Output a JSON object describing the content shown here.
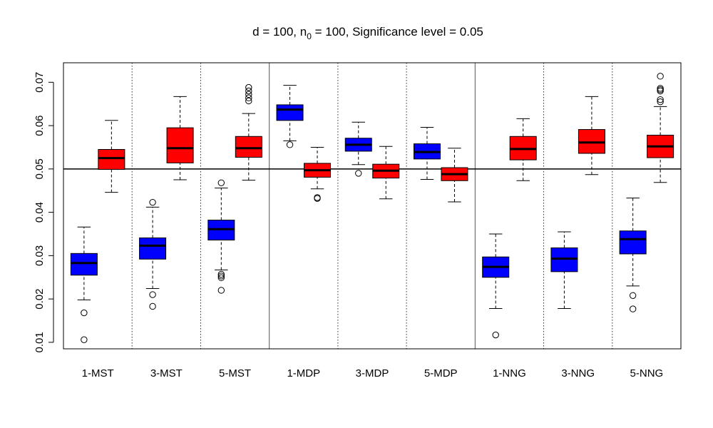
{
  "chart_data": {
    "type": "boxplot",
    "title": "d = 100, n",
    "title_subscript": "0",
    "title_rest": " = 100, Significance level = 0.05",
    "xlabel": "",
    "ylabel": "",
    "ylim": [
      0.0085,
      0.0745
    ],
    "yticks": [
      0.01,
      0.02,
      0.03,
      0.04,
      0.05,
      0.06,
      0.07
    ],
    "ytick_labels": [
      "0.01",
      "0.02",
      "0.03",
      "0.04",
      "0.05",
      "0.06",
      "0.07"
    ],
    "reference_line": 0.05,
    "categories": [
      "1-MST",
      "3-MST",
      "5-MST",
      "1-MDP",
      "3-MDP",
      "5-MDP",
      "1-NNG",
      "3-NNG",
      "5-NNG"
    ],
    "series_colors": {
      "blue": "#0000ff",
      "red": "#ff0000"
    },
    "groups": [
      {
        "label": "1-MST",
        "blue": {
          "whisker_low": 0.0198,
          "q1": 0.0255,
          "median": 0.0283,
          "q3": 0.0305,
          "whisker_high": 0.0366,
          "outliers": [
            0.0168,
            0.0106
          ]
        },
        "red": {
          "whisker_low": 0.0446,
          "q1": 0.0499,
          "median": 0.0525,
          "q3": 0.0545,
          "whisker_high": 0.0612,
          "outliers": []
        }
      },
      {
        "label": "3-MST",
        "blue": {
          "whisker_low": 0.0224,
          "q1": 0.0292,
          "median": 0.0323,
          "q3": 0.0341,
          "whisker_high": 0.0412,
          "outliers": [
            0.0423,
            0.021,
            0.0183
          ]
        },
        "red": {
          "whisker_low": 0.0475,
          "q1": 0.0514,
          "median": 0.0548,
          "q3": 0.0595,
          "whisker_high": 0.0667,
          "outliers": []
        }
      },
      {
        "label": "5-MST",
        "blue": {
          "whisker_low": 0.0267,
          "q1": 0.0336,
          "median": 0.0361,
          "q3": 0.0382,
          "whisker_high": 0.0456,
          "outliers": [
            0.0468,
            0.0257,
            0.0253,
            0.0249,
            0.022
          ]
        },
        "red": {
          "whisker_low": 0.0474,
          "q1": 0.0527,
          "median": 0.0548,
          "q3": 0.0575,
          "whisker_high": 0.0628,
          "outliers": [
            0.0688,
            0.068,
            0.0672,
            0.0664,
            0.0657
          ]
        }
      },
      {
        "label": "1-MDP",
        "blue": {
          "whisker_low": 0.0565,
          "q1": 0.0612,
          "median": 0.0637,
          "q3": 0.0648,
          "whisker_high": 0.0693,
          "outliers": [
            0.0556
          ]
        },
        "red": {
          "whisker_low": 0.0454,
          "q1": 0.0481,
          "median": 0.0497,
          "q3": 0.0513,
          "whisker_high": 0.055,
          "outliers": [
            0.0434,
            0.0432
          ]
        }
      },
      {
        "label": "3-MDP",
        "blue": {
          "whisker_low": 0.051,
          "q1": 0.0541,
          "median": 0.0556,
          "q3": 0.0571,
          "whisker_high": 0.0608,
          "outliers": [
            0.049
          ]
        },
        "red": {
          "whisker_low": 0.0431,
          "q1": 0.0479,
          "median": 0.0496,
          "q3": 0.0511,
          "whisker_high": 0.0552,
          "outliers": []
        }
      },
      {
        "label": "5-MDP",
        "blue": {
          "whisker_low": 0.0476,
          "q1": 0.0523,
          "median": 0.0539,
          "q3": 0.0558,
          "whisker_high": 0.0596,
          "outliers": []
        },
        "red": {
          "whisker_low": 0.0424,
          "q1": 0.0473,
          "median": 0.0488,
          "q3": 0.0503,
          "whisker_high": 0.0548,
          "outliers": []
        }
      },
      {
        "label": "1-NNG",
        "blue": {
          "whisker_low": 0.0178,
          "q1": 0.025,
          "median": 0.0274,
          "q3": 0.0297,
          "whisker_high": 0.035,
          "outliers": [
            0.0117
          ]
        },
        "red": {
          "whisker_low": 0.0473,
          "q1": 0.0521,
          "median": 0.0546,
          "q3": 0.0575,
          "whisker_high": 0.0616,
          "outliers": []
        }
      },
      {
        "label": "3-NNG",
        "blue": {
          "whisker_low": 0.0178,
          "q1": 0.0263,
          "median": 0.0293,
          "q3": 0.0318,
          "whisker_high": 0.0355,
          "outliers": []
        },
        "red": {
          "whisker_low": 0.0487,
          "q1": 0.0536,
          "median": 0.0561,
          "q3": 0.0591,
          "whisker_high": 0.0667,
          "outliers": []
        }
      },
      {
        "label": "5-NNG",
        "blue": {
          "whisker_low": 0.023,
          "q1": 0.0304,
          "median": 0.0338,
          "q3": 0.0357,
          "whisker_high": 0.0433,
          "outliers": [
            0.0208,
            0.0177
          ]
        },
        "red": {
          "whisker_low": 0.0469,
          "q1": 0.0526,
          "median": 0.0552,
          "q3": 0.0578,
          "whisker_high": 0.0644,
          "outliers": [
            0.0714,
            0.0686,
            0.0683,
            0.068,
            0.066,
            0.0655
          ]
        }
      }
    ],
    "separators": [
      {
        "after_group": 0,
        "style": "dotted"
      },
      {
        "after_group": 1,
        "style": "dotted"
      },
      {
        "after_group": 2,
        "style": "solid"
      },
      {
        "after_group": 3,
        "style": "dotted"
      },
      {
        "after_group": 4,
        "style": "dotted"
      },
      {
        "after_group": 5,
        "style": "solid"
      },
      {
        "after_group": 6,
        "style": "dotted"
      },
      {
        "after_group": 7,
        "style": "dotted"
      }
    ]
  }
}
